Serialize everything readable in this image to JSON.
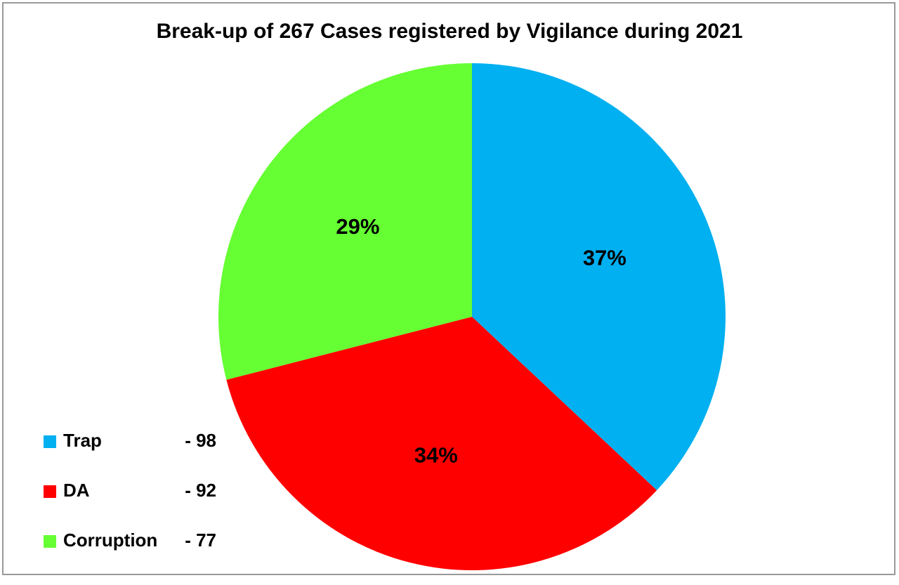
{
  "chart_data": {
    "type": "pie",
    "title": "Break-up of 267 Cases registered by Vigilance during 2021",
    "categories": [
      "Trap",
      "DA",
      "Corruption"
    ],
    "values": [
      37,
      34,
      29
    ],
    "value_labels": [
      "37%",
      "34%",
      "29%"
    ],
    "counts": [
      "- 98",
      "- 92",
      "- 77"
    ],
    "colors": [
      "#00b0f0",
      "#ff0000",
      "#66ff33"
    ],
    "legend": "bottom-left"
  }
}
